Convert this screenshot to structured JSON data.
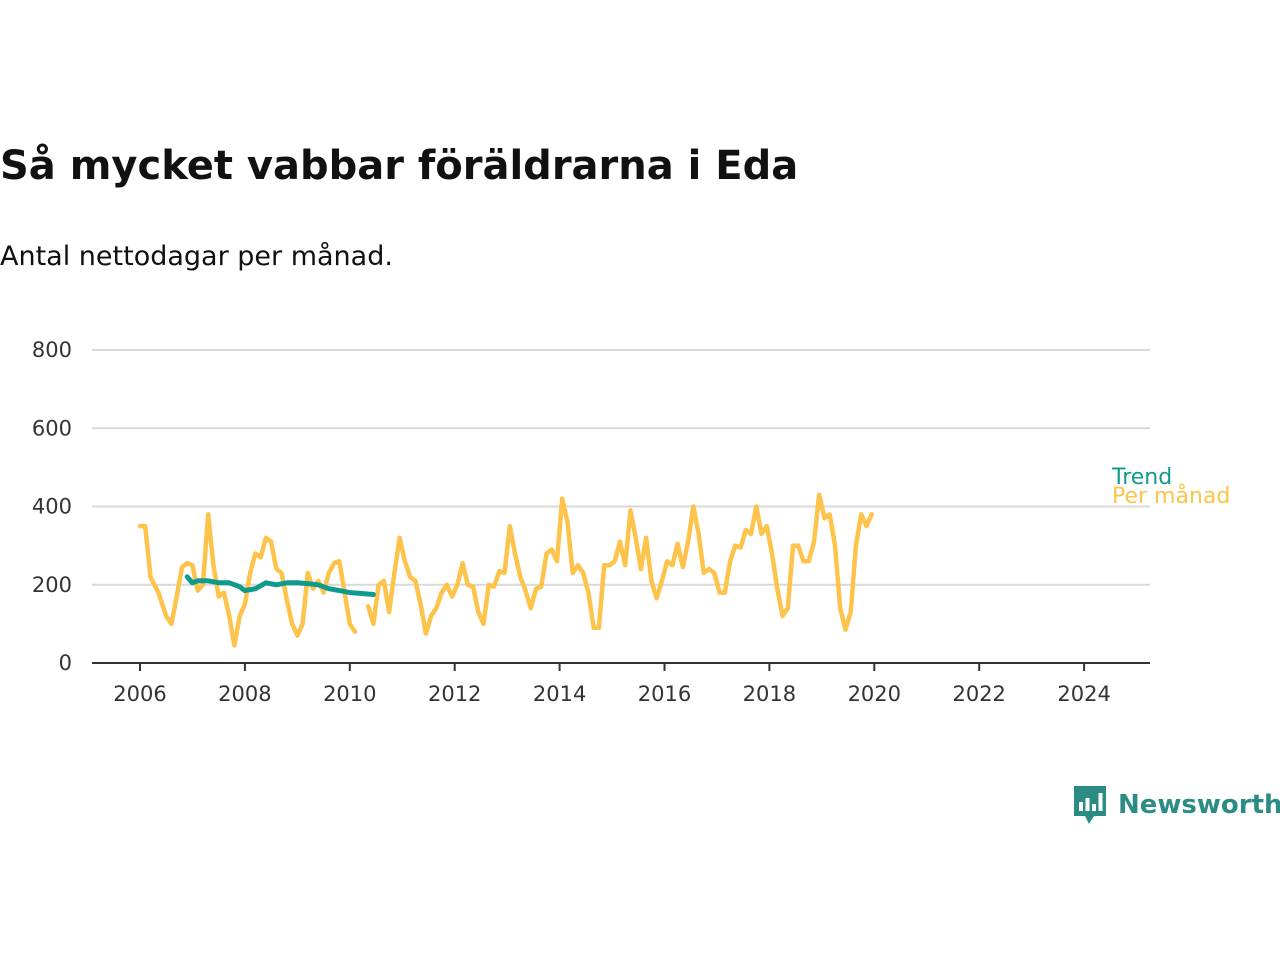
{
  "title": "Så mycket vabbar föräldrarna i Eda",
  "subtitle": "Antal nettodagar per månad.",
  "brand": {
    "name": "Newsworthy",
    "color": "#2a8c84",
    "icon": "bar-chart-speech-bubble-icon"
  },
  "colors": {
    "trend": "#0f9a8e",
    "monthly": "#fdc34a",
    "grid": "#d9d9d9",
    "axis": "#333333"
  },
  "chart_data": {
    "type": "line",
    "xlim": [
      2005.7,
      2025.2
    ],
    "ylim": [
      0,
      800
    ],
    "yticks": [
      0,
      200,
      400,
      600,
      800
    ],
    "xticks": [
      2006,
      2008,
      2010,
      2012,
      2014,
      2016,
      2018,
      2020,
      2022,
      2024
    ],
    "grid": true,
    "series_labels_position": "right-end",
    "series": [
      {
        "name": "Per månad",
        "color": "#fdc34a",
        "segments": [
          [
            [
              2006.0,
              350
            ],
            [
              2006.1,
              350
            ],
            [
              2006.2,
              220
            ],
            [
              2006.35,
              180
            ],
            [
              2006.5,
              120
            ],
            [
              2006.6,
              100
            ],
            [
              2006.7,
              170
            ],
            [
              2006.8,
              245
            ],
            [
              2006.9,
              255
            ],
            [
              2007.0,
              250
            ],
            [
              2007.1,
              185
            ],
            [
              2007.2,
              200
            ],
            [
              2007.3,
              380
            ],
            [
              2007.4,
              250
            ],
            [
              2007.5,
              170
            ],
            [
              2007.6,
              180
            ],
            [
              2007.7,
              120
            ],
            [
              2007.8,
              45
            ],
            [
              2007.9,
              120
            ],
            [
              2008.0,
              150
            ],
            [
              2008.1,
              230
            ],
            [
              2008.2,
              280
            ],
            [
              2008.3,
              270
            ],
            [
              2008.4,
              320
            ],
            [
              2008.5,
              310
            ],
            [
              2008.6,
              240
            ],
            [
              2008.7,
              230
            ],
            [
              2008.8,
              160
            ],
            [
              2008.9,
              100
            ],
            [
              2009.0,
              70
            ],
            [
              2009.1,
              100
            ],
            [
              2009.2,
              230
            ],
            [
              2009.3,
              190
            ],
            [
              2009.4,
              210
            ],
            [
              2009.5,
              180
            ],
            [
              2009.6,
              230
            ],
            [
              2009.7,
              255
            ],
            [
              2009.8,
              260
            ],
            [
              2009.9,
              180
            ],
            [
              2010.0,
              100
            ],
            [
              2010.1,
              80
            ]
          ],
          [
            [
              2010.35,
              145
            ],
            [
              2010.45,
              100
            ],
            [
              2010.55,
              200
            ],
            [
              2010.65,
              210
            ],
            [
              2010.75,
              130
            ],
            [
              2010.85,
              230
            ],
            [
              2010.95,
              320
            ],
            [
              2011.05,
              260
            ],
            [
              2011.15,
              220
            ],
            [
              2011.25,
              210
            ],
            [
              2011.35,
              150
            ],
            [
              2011.45,
              75
            ],
            [
              2011.55,
              120
            ],
            [
              2011.65,
              140
            ],
            [
              2011.75,
              180
            ],
            [
              2011.85,
              200
            ],
            [
              2011.95,
              170
            ],
            [
              2012.05,
              200
            ],
            [
              2012.15,
              255
            ],
            [
              2012.25,
              200
            ],
            [
              2012.35,
              195
            ],
            [
              2012.45,
              130
            ],
            [
              2012.55,
              100
            ],
            [
              2012.65,
              200
            ],
            [
              2012.75,
              195
            ],
            [
              2012.85,
              235
            ],
            [
              2012.95,
              230
            ],
            [
              2013.05,
              350
            ],
            [
              2013.15,
              280
            ],
            [
              2013.25,
              220
            ],
            [
              2013.35,
              185
            ],
            [
              2013.45,
              140
            ],
            [
              2013.55,
              190
            ],
            [
              2013.65,
              195
            ],
            [
              2013.75,
              280
            ],
            [
              2013.85,
              290
            ],
            [
              2013.95,
              260
            ],
            [
              2014.05,
              420
            ],
            [
              2014.15,
              360
            ],
            [
              2014.25,
              230
            ],
            [
              2014.35,
              250
            ],
            [
              2014.45,
              230
            ],
            [
              2014.55,
              180
            ],
            [
              2014.65,
              90
            ],
            [
              2014.75,
              90
            ],
            [
              2014.85,
              250
            ],
            [
              2014.95,
              250
            ],
            [
              2015.05,
              260
            ],
            [
              2015.15,
              310
            ],
            [
              2015.25,
              250
            ],
            [
              2015.35,
              390
            ],
            [
              2015.45,
              320
            ],
            [
              2015.55,
              240
            ],
            [
              2015.65,
              320
            ],
            [
              2015.75,
              210
            ],
            [
              2015.85,
              165
            ],
            [
              2015.95,
              210
            ],
            [
              2016.05,
              260
            ],
            [
              2016.15,
              250
            ],
            [
              2016.25,
              305
            ],
            [
              2016.35,
              245
            ],
            [
              2016.45,
              310
            ],
            [
              2016.55,
              400
            ],
            [
              2016.65,
              330
            ],
            [
              2016.75,
              230
            ],
            [
              2016.85,
              240
            ],
            [
              2016.95,
              230
            ],
            [
              2017.05,
              180
            ],
            [
              2017.15,
              180
            ],
            [
              2017.25,
              260
            ],
            [
              2017.35,
              300
            ],
            [
              2017.45,
              295
            ],
            [
              2017.55,
              340
            ],
            [
              2017.65,
              330
            ],
            [
              2017.75,
              400
            ],
            [
              2017.85,
              330
            ],
            [
              2017.95,
              350
            ],
            [
              2018.05,
              280
            ],
            [
              2018.15,
              190
            ],
            [
              2018.25,
              120
            ],
            [
              2018.35,
              140
            ],
            [
              2018.45,
              300
            ],
            [
              2018.55,
              300
            ],
            [
              2018.65,
              260
            ],
            [
              2018.75,
              260
            ],
            [
              2018.85,
              310
            ],
            [
              2018.95,
              430
            ],
            [
              2019.05,
              370
            ],
            [
              2019.15,
              380
            ],
            [
              2019.25,
              300
            ],
            [
              2019.35,
              140
            ],
            [
              2019.45,
              85
            ],
            [
              2019.55,
              130
            ],
            [
              2019.65,
              300
            ],
            [
              2019.75,
              380
            ],
            [
              2019.85,
              350
            ],
            [
              2019.95,
              380
            ]
          ]
        ]
      },
      {
        "name": "Trend",
        "color": "#0f9a8e",
        "segments": [
          [
            [
              2006.9,
              220
            ],
            [
              2007.0,
              205
            ],
            [
              2007.1,
              210
            ],
            [
              2007.3,
              210
            ],
            [
              2007.5,
              205
            ],
            [
              2007.7,
              205
            ],
            [
              2007.9,
              195
            ],
            [
              2008.0,
              185
            ],
            [
              2008.2,
              190
            ],
            [
              2008.4,
              205
            ],
            [
              2008.6,
              200
            ],
            [
              2008.8,
              205
            ],
            [
              2009.0,
              205
            ],
            [
              2009.2,
              203
            ],
            [
              2009.4,
              200
            ],
            [
              2009.6,
              190
            ],
            [
              2009.8,
              185
            ],
            [
              2010.0,
              180
            ],
            [
              2010.2,
              178
            ],
            [
              2010.45,
              175
            ]
          ]
        ]
      }
    ]
  }
}
